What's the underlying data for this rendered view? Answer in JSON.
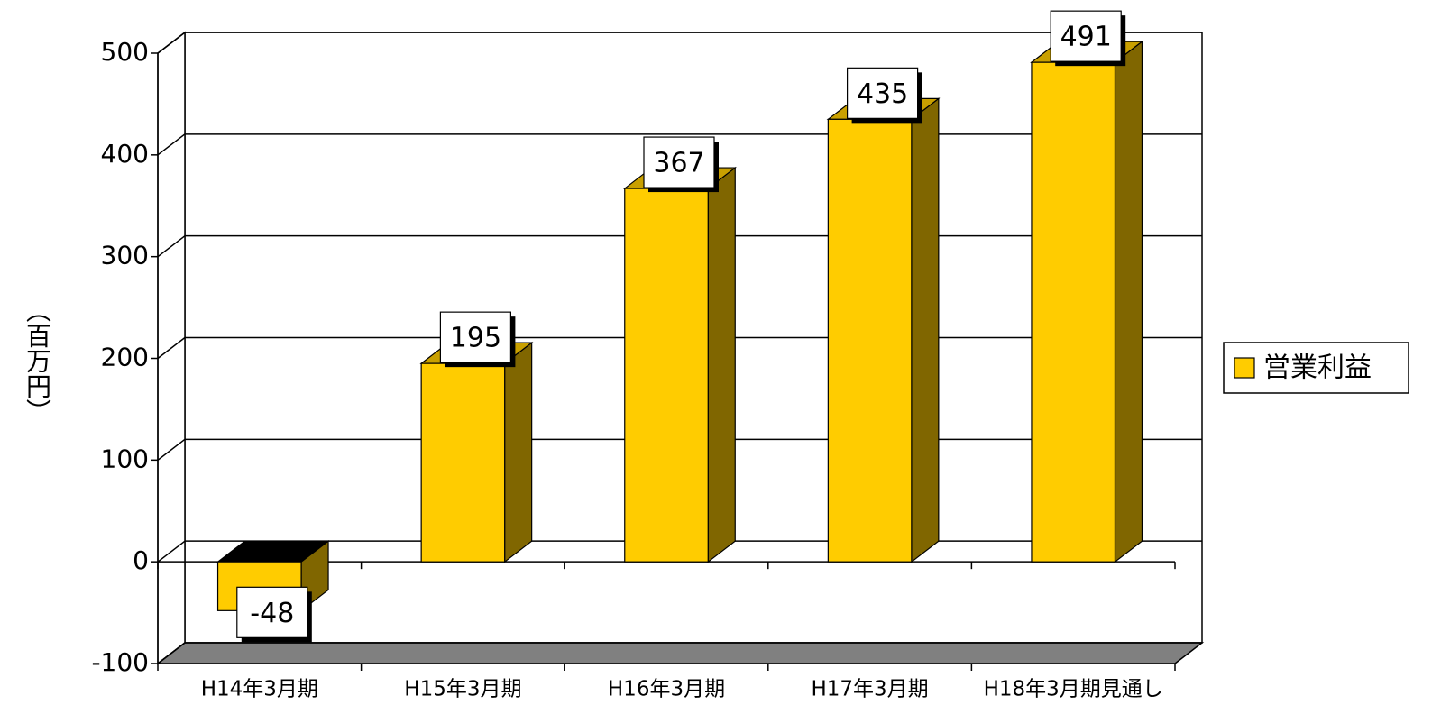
{
  "chart_data": {
    "type": "bar3d",
    "y_label": "（百万円）",
    "categories": [
      "H14年3月期",
      "H15年3月期",
      "H16年3月期",
      "H17年3月期",
      "H18年3月期見通し"
    ],
    "series": [
      {
        "name": "営業利益",
        "color": "#ffcc00",
        "side_color": "#806600",
        "top_color": "#c9a000",
        "values": [
          -48,
          195,
          367,
          435,
          491
        ]
      }
    ],
    "ylim": [
      -100,
      500
    ],
    "yticks": [
      -100,
      0,
      100,
      200,
      300,
      400,
      500
    ],
    "grid": true,
    "legend": "right",
    "floor_color": "#808080"
  }
}
